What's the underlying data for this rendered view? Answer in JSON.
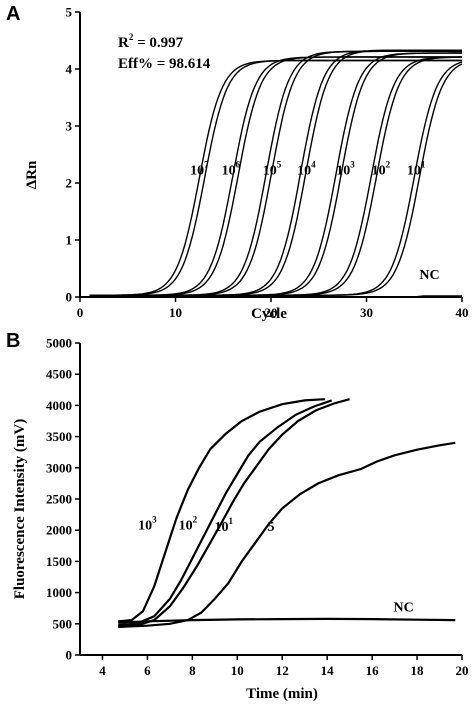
{
  "panels": [
    {
      "label": "A"
    },
    {
      "label": "B"
    }
  ],
  "chart_data": [
    {
      "type": "line",
      "xlabel": "Cycle",
      "ylabel": "ΔRn",
      "xlim": [
        0,
        40
      ],
      "ylim": [
        0,
        5
      ],
      "xticks": [
        0,
        10,
        20,
        30,
        40
      ],
      "yticks": [
        0,
        1,
        2,
        3,
        4,
        5
      ],
      "annotations": {
        "r2_prefix": "R",
        "r2_sup": "2",
        "r2_value": " = 0.997",
        "eff": "Eff% = 98.614"
      },
      "series": [
        {
          "label_base": "10",
          "label_exp": "7",
          "midpoint": 12.8,
          "plateau": 4.12,
          "slope": 0.85,
          "replicates": [
            -0.3,
            0.25
          ],
          "label_at": [
            12.5,
            2.15
          ]
        },
        {
          "label_base": "10",
          "label_exp": "6",
          "midpoint": 16.3,
          "plateau": 4.18,
          "slope": 0.85,
          "replicates": [
            -0.3,
            0.25
          ],
          "label_at": [
            15.8,
            2.15
          ]
        },
        {
          "label_base": "10",
          "label_exp": "5",
          "midpoint": 19.8,
          "plateau": 4.28,
          "slope": 0.85,
          "replicates": [
            -0.3,
            0.25
          ],
          "label_at": [
            20.1,
            2.15
          ]
        },
        {
          "label_base": "10",
          "label_exp": "4",
          "midpoint": 23.4,
          "plateau": 4.3,
          "slope": 0.85,
          "replicates": [
            -0.3,
            0.25
          ],
          "label_at": [
            23.7,
            2.15
          ]
        },
        {
          "label_base": "10",
          "label_exp": "3",
          "midpoint": 27.1,
          "plateau": 4.25,
          "slope": 0.85,
          "replicates": [
            -0.3,
            0.25
          ],
          "label_at": [
            27.8,
            2.15
          ]
        },
        {
          "label_base": "10",
          "label_exp": "2",
          "midpoint": 30.8,
          "plateau": 4.18,
          "slope": 0.85,
          "replicates": [
            -0.3,
            0.25
          ],
          "label_at": [
            31.5,
            2.15
          ]
        },
        {
          "label_base": "10",
          "label_exp": "1",
          "midpoint": 35.3,
          "plateau": 4.15,
          "slope": 0.85,
          "replicates": [
            -0.3,
            0.25
          ],
          "label_at": [
            35.2,
            2.15
          ]
        }
      ],
      "nc": {
        "label": "NC",
        "value": 0.0,
        "label_at": [
          36.6,
          0.32
        ]
      }
    },
    {
      "type": "line",
      "xlabel": "Time (min)",
      "ylabel": "Fluorescence Intensity (mV)",
      "xlim": [
        3,
        20
      ],
      "ylim": [
        0,
        5000
      ],
      "xticks": [
        4,
        6,
        8,
        10,
        12,
        14,
        16,
        18,
        20
      ],
      "yticks": [
        0,
        500,
        1000,
        1500,
        2000,
        2500,
        3000,
        3500,
        4000,
        4500,
        5000
      ],
      "series": [
        {
          "label_base": "10",
          "label_exp": "3",
          "points": [
            [
              4.7,
              540
            ],
            [
              5.3,
              560
            ],
            [
              5.8,
              700
            ],
            [
              6.3,
              1100
            ],
            [
              6.8,
              1650
            ],
            [
              7.3,
              2200
            ],
            [
              7.8,
              2650
            ],
            [
              8.3,
              3000
            ],
            [
              8.8,
              3300
            ],
            [
              9.5,
              3550
            ],
            [
              10.2,
              3750
            ],
            [
              11,
              3900
            ],
            [
              12,
              4020
            ],
            [
              13,
              4080
            ],
            [
              13.9,
              4100
            ]
          ],
          "label_at": [
            6.0,
            2010
          ]
        },
        {
          "label_base": "10",
          "label_exp": "2",
          "points": [
            [
              4.7,
              480
            ],
            [
              5.5,
              500
            ],
            [
              6.3,
              620
            ],
            [
              7,
              900
            ],
            [
              7.5,
              1200
            ],
            [
              8,
              1550
            ],
            [
              8.5,
              1900
            ],
            [
              9,
              2250
            ],
            [
              9.5,
              2600
            ],
            [
              10,
              2900
            ],
            [
              10.5,
              3200
            ],
            [
              11,
              3420
            ],
            [
              11.8,
              3650
            ],
            [
              12.6,
              3850
            ],
            [
              13.4,
              3980
            ],
            [
              14.2,
              4080
            ]
          ],
          "label_at": [
            7.8,
            2010
          ]
        },
        {
          "label_base": "10",
          "label_exp": "1",
          "points": [
            [
              4.7,
              450
            ],
            [
              5.5,
              470
            ],
            [
              6.3,
              560
            ],
            [
              7,
              780
            ],
            [
              7.6,
              1080
            ],
            [
              8.2,
              1420
            ],
            [
              8.8,
              1800
            ],
            [
              9.3,
              2120
            ],
            [
              9.8,
              2450
            ],
            [
              10.3,
              2750
            ],
            [
              10.8,
              3000
            ],
            [
              11.4,
              3300
            ],
            [
              12,
              3530
            ],
            [
              12.7,
              3750
            ],
            [
              13.5,
              3920
            ],
            [
              14.3,
              4030
            ],
            [
              15,
              4100
            ]
          ],
          "label_at": [
            9.4,
            1990
          ]
        },
        {
          "label_base": "5",
          "label_exp": "",
          "points": [
            [
              4.7,
              450
            ],
            [
              6,
              470
            ],
            [
              7,
              500
            ],
            [
              7.8,
              560
            ],
            [
              8.4,
              680
            ],
            [
              9,
              900
            ],
            [
              9.6,
              1150
            ],
            [
              10.2,
              1500
            ],
            [
              10.8,
              1800
            ],
            [
              11.4,
              2100
            ],
            [
              12,
              2350
            ],
            [
              12.8,
              2580
            ],
            [
              13.6,
              2750
            ],
            [
              14.5,
              2880
            ],
            [
              15.5,
              2980
            ],
            [
              16.2,
              3100
            ],
            [
              17,
              3200
            ],
            [
              18,
              3290
            ],
            [
              19,
              3360
            ],
            [
              19.7,
              3400
            ]
          ],
          "label_at": [
            11.5,
            1990
          ]
        }
      ],
      "nc": {
        "label": "NC",
        "points": [
          [
            4.7,
            520
          ],
          [
            6,
            540
          ],
          [
            8,
            560
          ],
          [
            10,
            570
          ],
          [
            12,
            575
          ],
          [
            14,
            578
          ],
          [
            16,
            575
          ],
          [
            18,
            565
          ],
          [
            19.7,
            560
          ]
        ],
        "label_at": [
          17.4,
          700
        ]
      }
    }
  ]
}
